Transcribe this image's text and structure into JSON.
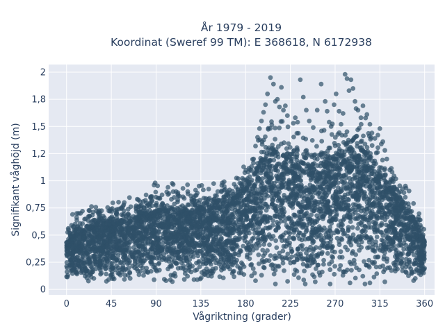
{
  "chart_data": {
    "type": "scatter",
    "title_line1": "År 1979 - 2019",
    "title_line2": "Koordinat (Sweref 99 TM): E 368618, N 6172938",
    "xlabel": "Vågriktning (grader)",
    "ylabel": "Signifikant våghöjd (m)",
    "xlim": [
      -18,
      370
    ],
    "ylim": [
      -0.05,
      2.07
    ],
    "xticks": [
      0,
      45,
      90,
      135,
      180,
      225,
      270,
      315,
      360
    ],
    "xtick_labels": [
      "0",
      "45",
      "90",
      "135",
      "180",
      "225",
      "270",
      "315",
      "360"
    ],
    "yticks": [
      0,
      0.25,
      0.5,
      0.75,
      1,
      1.25,
      1.5,
      1.75,
      2
    ],
    "ytick_labels": [
      "0",
      "0,25",
      "0,5",
      "0,75",
      "1",
      "1,2",
      "1,5",
      "1,8",
      "2"
    ],
    "grid": true,
    "colors": {
      "plot_bg": "#e5e9f2",
      "grid": "#ffffff",
      "marker": "#2f5068",
      "text": "#2a3f5f"
    },
    "series": [
      {
        "marker_opacity": 0.7,
        "envelope": [
          {
            "x": 0,
            "ymin": 0.07,
            "ymax": 0.45
          },
          {
            "x": 10,
            "ymin": 0.07,
            "ymax": 0.55
          },
          {
            "x": 30,
            "ymin": 0.07,
            "ymax": 0.58
          },
          {
            "x": 60,
            "ymin": 0.07,
            "ymax": 0.62
          },
          {
            "x": 90,
            "ymin": 0.07,
            "ymax": 0.72
          },
          {
            "x": 135,
            "ymin": 0.07,
            "ymax": 0.73
          },
          {
            "x": 165,
            "ymin": 0.07,
            "ymax": 0.8
          },
          {
            "x": 185,
            "ymin": 0.07,
            "ymax": 1.0
          },
          {
            "x": 200,
            "ymin": 0.06,
            "ymax": 1.25
          },
          {
            "x": 225,
            "ymin": 0.06,
            "ymax": 1.2
          },
          {
            "x": 250,
            "ymin": 0.06,
            "ymax": 1.1
          },
          {
            "x": 280,
            "ymin": 0.05,
            "ymax": 1.25
          },
          {
            "x": 300,
            "ymin": 0.05,
            "ymax": 1.28
          },
          {
            "x": 320,
            "ymin": 0.06,
            "ymax": 1.0
          },
          {
            "x": 340,
            "ymin": 0.07,
            "ymax": 0.75
          },
          {
            "x": 360,
            "ymin": 0.07,
            "ymax": 0.45
          }
        ],
        "points": [
          [
            0,
            0.43
          ],
          [
            2,
            0.55
          ],
          [
            5,
            0.59
          ],
          [
            6,
            0.69
          ],
          [
            12,
            0.7
          ],
          [
            14,
            0.7
          ],
          [
            16,
            0.72
          ],
          [
            22,
            0.67
          ],
          [
            30,
            0.6
          ],
          [
            38,
            0.66
          ],
          [
            44,
            0.64
          ],
          [
            47,
            0.65
          ],
          [
            50,
            0.7
          ],
          [
            55,
            0.75
          ],
          [
            58,
            0.8
          ],
          [
            62,
            0.74
          ],
          [
            70,
            0.77
          ],
          [
            78,
            0.75
          ],
          [
            82,
            0.78
          ],
          [
            86,
            0.82
          ],
          [
            88,
            0.96
          ],
          [
            89,
            0.98
          ],
          [
            92,
            0.84
          ],
          [
            96,
            0.87
          ],
          [
            102,
            0.94
          ],
          [
            110,
            0.9
          ],
          [
            117,
            0.93
          ],
          [
            122,
            0.88
          ],
          [
            128,
            0.82
          ],
          [
            138,
            0.84
          ],
          [
            146,
            0.82
          ],
          [
            152,
            0.9
          ],
          [
            160,
            0.85
          ],
          [
            170,
            0.88
          ],
          [
            176,
            0.96
          ],
          [
            178,
            1.01
          ],
          [
            182,
            1.02
          ],
          [
            186,
            1.13
          ],
          [
            188,
            1.2
          ],
          [
            190,
            1.32
          ],
          [
            192,
            1.4
          ],
          [
            194,
            1.48
          ],
          [
            196,
            1.55
          ],
          [
            198,
            1.63
          ],
          [
            200,
            1.7
          ],
          [
            202,
            1.8
          ],
          [
            205,
            1.95
          ],
          [
            208,
            1.89
          ],
          [
            210,
            1.73
          ],
          [
            212,
            1.75
          ],
          [
            214,
            1.68
          ],
          [
            216,
            1.86
          ],
          [
            218,
            1.65
          ],
          [
            220,
            1.69
          ],
          [
            222,
            1.6
          ],
          [
            228,
            1.53
          ],
          [
            230,
            1.58
          ],
          [
            235,
            1.93
          ],
          [
            238,
            1.77
          ],
          [
            241,
            1.65
          ],
          [
            244,
            1.55
          ],
          [
            248,
            1.49
          ],
          [
            252,
            1.65
          ],
          [
            256,
            1.89
          ],
          [
            260,
            1.73
          ],
          [
            262,
            1.64
          ],
          [
            264,
            1.54
          ],
          [
            266,
            1.5
          ],
          [
            269,
            1.7
          ],
          [
            271,
            1.8
          ],
          [
            274,
            1.64
          ],
          [
            276,
            1.52
          ],
          [
            278,
            1.62
          ],
          [
            280,
            1.98
          ],
          [
            282,
            1.94
          ],
          [
            284,
            1.83
          ],
          [
            286,
            1.93
          ],
          [
            288,
            1.85
          ],
          [
            290,
            1.73
          ],
          [
            293,
            1.65
          ],
          [
            296,
            1.58
          ],
          [
            298,
            1.69
          ],
          [
            302,
            1.61
          ],
          [
            305,
            1.52
          ],
          [
            307,
            1.44
          ],
          [
            310,
            1.39
          ],
          [
            313,
            1.42
          ],
          [
            315,
            1.48
          ],
          [
            318,
            1.36
          ],
          [
            320,
            1.28
          ],
          [
            322,
            1.2
          ],
          [
            325,
            1.1
          ],
          [
            328,
            1.02
          ],
          [
            332,
            0.92
          ],
          [
            335,
            0.85
          ],
          [
            338,
            0.8
          ],
          [
            342,
            0.72
          ],
          [
            346,
            0.65
          ],
          [
            350,
            0.62
          ],
          [
            355,
            0.54
          ],
          [
            358,
            0.49
          ],
          [
            100,
            0.08
          ],
          [
            210,
            0.05
          ],
          [
            265,
            0.05
          ],
          [
            300,
            0.05
          ],
          [
            305,
            0.06
          ],
          [
            240,
            0.05
          ],
          [
            320,
            0.07
          ],
          [
            190,
            0.08
          ],
          [
            250,
            0.07
          ],
          [
            285,
            0.06
          ]
        ]
      }
    ]
  }
}
